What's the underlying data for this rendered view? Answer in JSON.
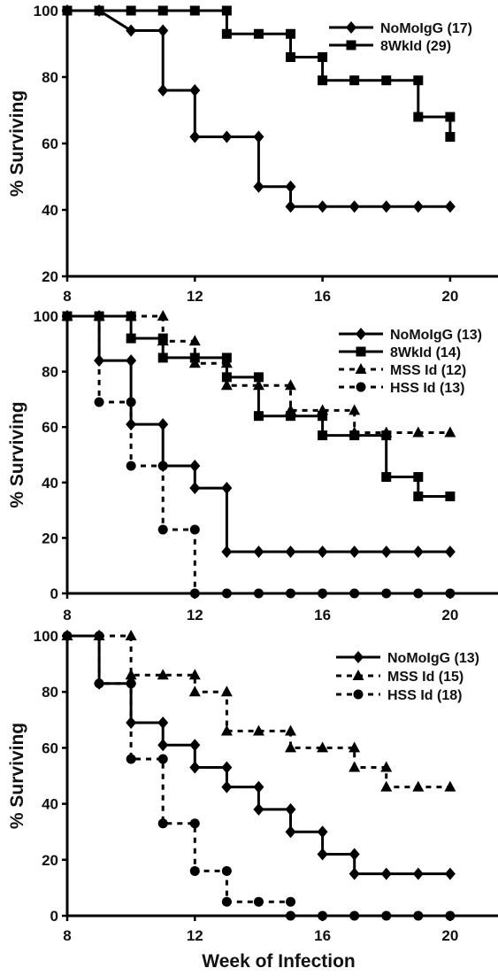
{
  "chart_data": [
    {
      "type": "line",
      "title": "",
      "xlabel": "",
      "ylabel": "% Surviving",
      "xlim": [
        8,
        21.5
      ],
      "ylim": [
        20,
        100
      ],
      "xticks": [
        8,
        12,
        16,
        20
      ],
      "yticks": [
        20,
        40,
        60,
        80,
        100
      ],
      "legend_position": "top-right",
      "series": [
        {
          "name": "NoMoIgG (17)",
          "marker": "diamond",
          "dashed": false,
          "color": "#000000",
          "points": [
            [
              8,
              100
            ],
            [
              9,
              100
            ],
            [
              10,
              94
            ],
            [
              11,
              94
            ],
            [
              11,
              76
            ],
            [
              12,
              76
            ],
            [
              12,
              62
            ],
            [
              13,
              62
            ],
            [
              14,
              62
            ],
            [
              14,
              47
            ],
            [
              15,
              47
            ],
            [
              15,
              41
            ],
            [
              16,
              41
            ],
            [
              17,
              41
            ],
            [
              18,
              41
            ],
            [
              19,
              41
            ],
            [
              20,
              41
            ]
          ]
        },
        {
          "name": "8WkId (29)",
          "marker": "square",
          "dashed": false,
          "color": "#000000",
          "points": [
            [
              8,
              100
            ],
            [
              9,
              100
            ],
            [
              10,
              100
            ],
            [
              11,
              100
            ],
            [
              12,
              100
            ],
            [
              13,
              100
            ],
            [
              13,
              93
            ],
            [
              14,
              93
            ],
            [
              15,
              93
            ],
            [
              15,
              86
            ],
            [
              16,
              86
            ],
            [
              16,
              79
            ],
            [
              17,
              79
            ],
            [
              18,
              79
            ],
            [
              19,
              79
            ],
            [
              19,
              68
            ],
            [
              20,
              68
            ],
            [
              20,
              62
            ]
          ]
        }
      ]
    },
    {
      "type": "line",
      "title": "",
      "xlabel": "",
      "ylabel": "% Surviving",
      "xlim": [
        8,
        21.5
      ],
      "ylim": [
        0,
        100
      ],
      "xticks": [
        8,
        12,
        16,
        20
      ],
      "yticks": [
        0,
        20,
        40,
        60,
        80,
        100
      ],
      "legend_position": "top-right",
      "series": [
        {
          "name": "NoMoIgG (13)",
          "marker": "diamond",
          "dashed": false,
          "color": "#000000",
          "points": [
            [
              8,
              100
            ],
            [
              9,
              100
            ],
            [
              9,
              84
            ],
            [
              10,
              84
            ],
            [
              10,
              61
            ],
            [
              11,
              61
            ],
            [
              11,
              46
            ],
            [
              12,
              46
            ],
            [
              12,
              38
            ],
            [
              13,
              38
            ],
            [
              13,
              15
            ],
            [
              14,
              15
            ],
            [
              15,
              15
            ],
            [
              16,
              15
            ],
            [
              17,
              15
            ],
            [
              18,
              15
            ],
            [
              19,
              15
            ],
            [
              20,
              15
            ]
          ]
        },
        {
          "name": "8WkId (14)",
          "marker": "square",
          "dashed": false,
          "color": "#000000",
          "points": [
            [
              8,
              100
            ],
            [
              9,
              100
            ],
            [
              10,
              100
            ],
            [
              10,
              92
            ],
            [
              11,
              92
            ],
            [
              11,
              85
            ],
            [
              12,
              85
            ],
            [
              13,
              85
            ],
            [
              13,
              78
            ],
            [
              14,
              78
            ],
            [
              14,
              64
            ],
            [
              15,
              64
            ],
            [
              16,
              64
            ],
            [
              16,
              57
            ],
            [
              17,
              57
            ],
            [
              18,
              57
            ],
            [
              18,
              42
            ],
            [
              19,
              42
            ],
            [
              19,
              35
            ],
            [
              20,
              35
            ]
          ]
        },
        {
          "name": "MSS Id (12)",
          "marker": "triangle",
          "dashed": true,
          "color": "#000000",
          "points": [
            [
              8,
              100
            ],
            [
              9,
              100
            ],
            [
              10,
              100
            ],
            [
              11,
              100
            ],
            [
              11,
              91
            ],
            [
              12,
              91
            ],
            [
              12,
              83
            ],
            [
              13,
              83
            ],
            [
              13,
              75
            ],
            [
              14,
              75
            ],
            [
              15,
              75
            ],
            [
              15,
              66
            ],
            [
              16,
              66
            ],
            [
              17,
              66
            ],
            [
              17,
              58
            ],
            [
              18,
              58
            ],
            [
              19,
              58
            ],
            [
              20,
              58
            ]
          ]
        },
        {
          "name": "HSS Id (13)",
          "marker": "circle",
          "dashed": true,
          "color": "#000000",
          "points": [
            [
              8,
              100
            ],
            [
              9,
              100
            ],
            [
              9,
              69
            ],
            [
              10,
              69
            ],
            [
              10,
              46
            ],
            [
              11,
              46
            ],
            [
              11,
              23
            ],
            [
              12,
              23
            ],
            [
              12,
              0
            ],
            [
              13,
              0
            ],
            [
              14,
              0
            ],
            [
              15,
              0
            ],
            [
              16,
              0
            ],
            [
              17,
              0
            ],
            [
              18,
              0
            ],
            [
              19,
              0
            ],
            [
              20,
              0
            ]
          ]
        }
      ]
    },
    {
      "type": "line",
      "title": "",
      "xlabel": "Week of Infection",
      "ylabel": "% Surviving",
      "xlim": [
        8,
        21.5
      ],
      "ylim": [
        0,
        100
      ],
      "xticks": [
        8,
        12,
        16,
        20
      ],
      "yticks": [
        0,
        20,
        40,
        60,
        80,
        100
      ],
      "legend_position": "top-right",
      "series": [
        {
          "name": "NoMoIgG (13)",
          "marker": "diamond",
          "dashed": false,
          "color": "#000000",
          "points": [
            [
              8,
              100
            ],
            [
              9,
              100
            ],
            [
              9,
              83
            ],
            [
              10,
              83
            ],
            [
              10,
              69
            ],
            [
              11,
              69
            ],
            [
              11,
              61
            ],
            [
              12,
              61
            ],
            [
              12,
              53
            ],
            [
              13,
              53
            ],
            [
              13,
              46
            ],
            [
              14,
              46
            ],
            [
              14,
              38
            ],
            [
              15,
              38
            ],
            [
              15,
              30
            ],
            [
              16,
              30
            ],
            [
              16,
              22
            ],
            [
              17,
              22
            ],
            [
              17,
              15
            ],
            [
              18,
              15
            ],
            [
              19,
              15
            ],
            [
              20,
              15
            ]
          ]
        },
        {
          "name": "MSS Id (15)",
          "marker": "triangle",
          "dashed": true,
          "color": "#000000",
          "points": [
            [
              8,
              100
            ],
            [
              9,
              100
            ],
            [
              10,
              100
            ],
            [
              10,
              86
            ],
            [
              11,
              86
            ],
            [
              12,
              86
            ],
            [
              12,
              80
            ],
            [
              13,
              80
            ],
            [
              13,
              66
            ],
            [
              14,
              66
            ],
            [
              15,
              66
            ],
            [
              15,
              60
            ],
            [
              16,
              60
            ],
            [
              17,
              60
            ],
            [
              17,
              53
            ],
            [
              18,
              53
            ],
            [
              18,
              46
            ],
            [
              19,
              46
            ],
            [
              20,
              46
            ]
          ]
        },
        {
          "name": "HSS Id (18)",
          "marker": "circle",
          "dashed": true,
          "color": "#000000",
          "points": [
            [
              8,
              100
            ],
            [
              9,
              100
            ],
            [
              9,
              83
            ],
            [
              10,
              83
            ],
            [
              10,
              56
            ],
            [
              11,
              56
            ],
            [
              11,
              33
            ],
            [
              12,
              33
            ],
            [
              12,
              16
            ],
            [
              13,
              16
            ],
            [
              13,
              5
            ],
            [
              14,
              5
            ],
            [
              15,
              5
            ],
            [
              15,
              0
            ],
            [
              16,
              0
            ],
            [
              17,
              0
            ],
            [
              18,
              0
            ],
            [
              19,
              0
            ],
            [
              20,
              0
            ]
          ]
        }
      ]
    }
  ]
}
